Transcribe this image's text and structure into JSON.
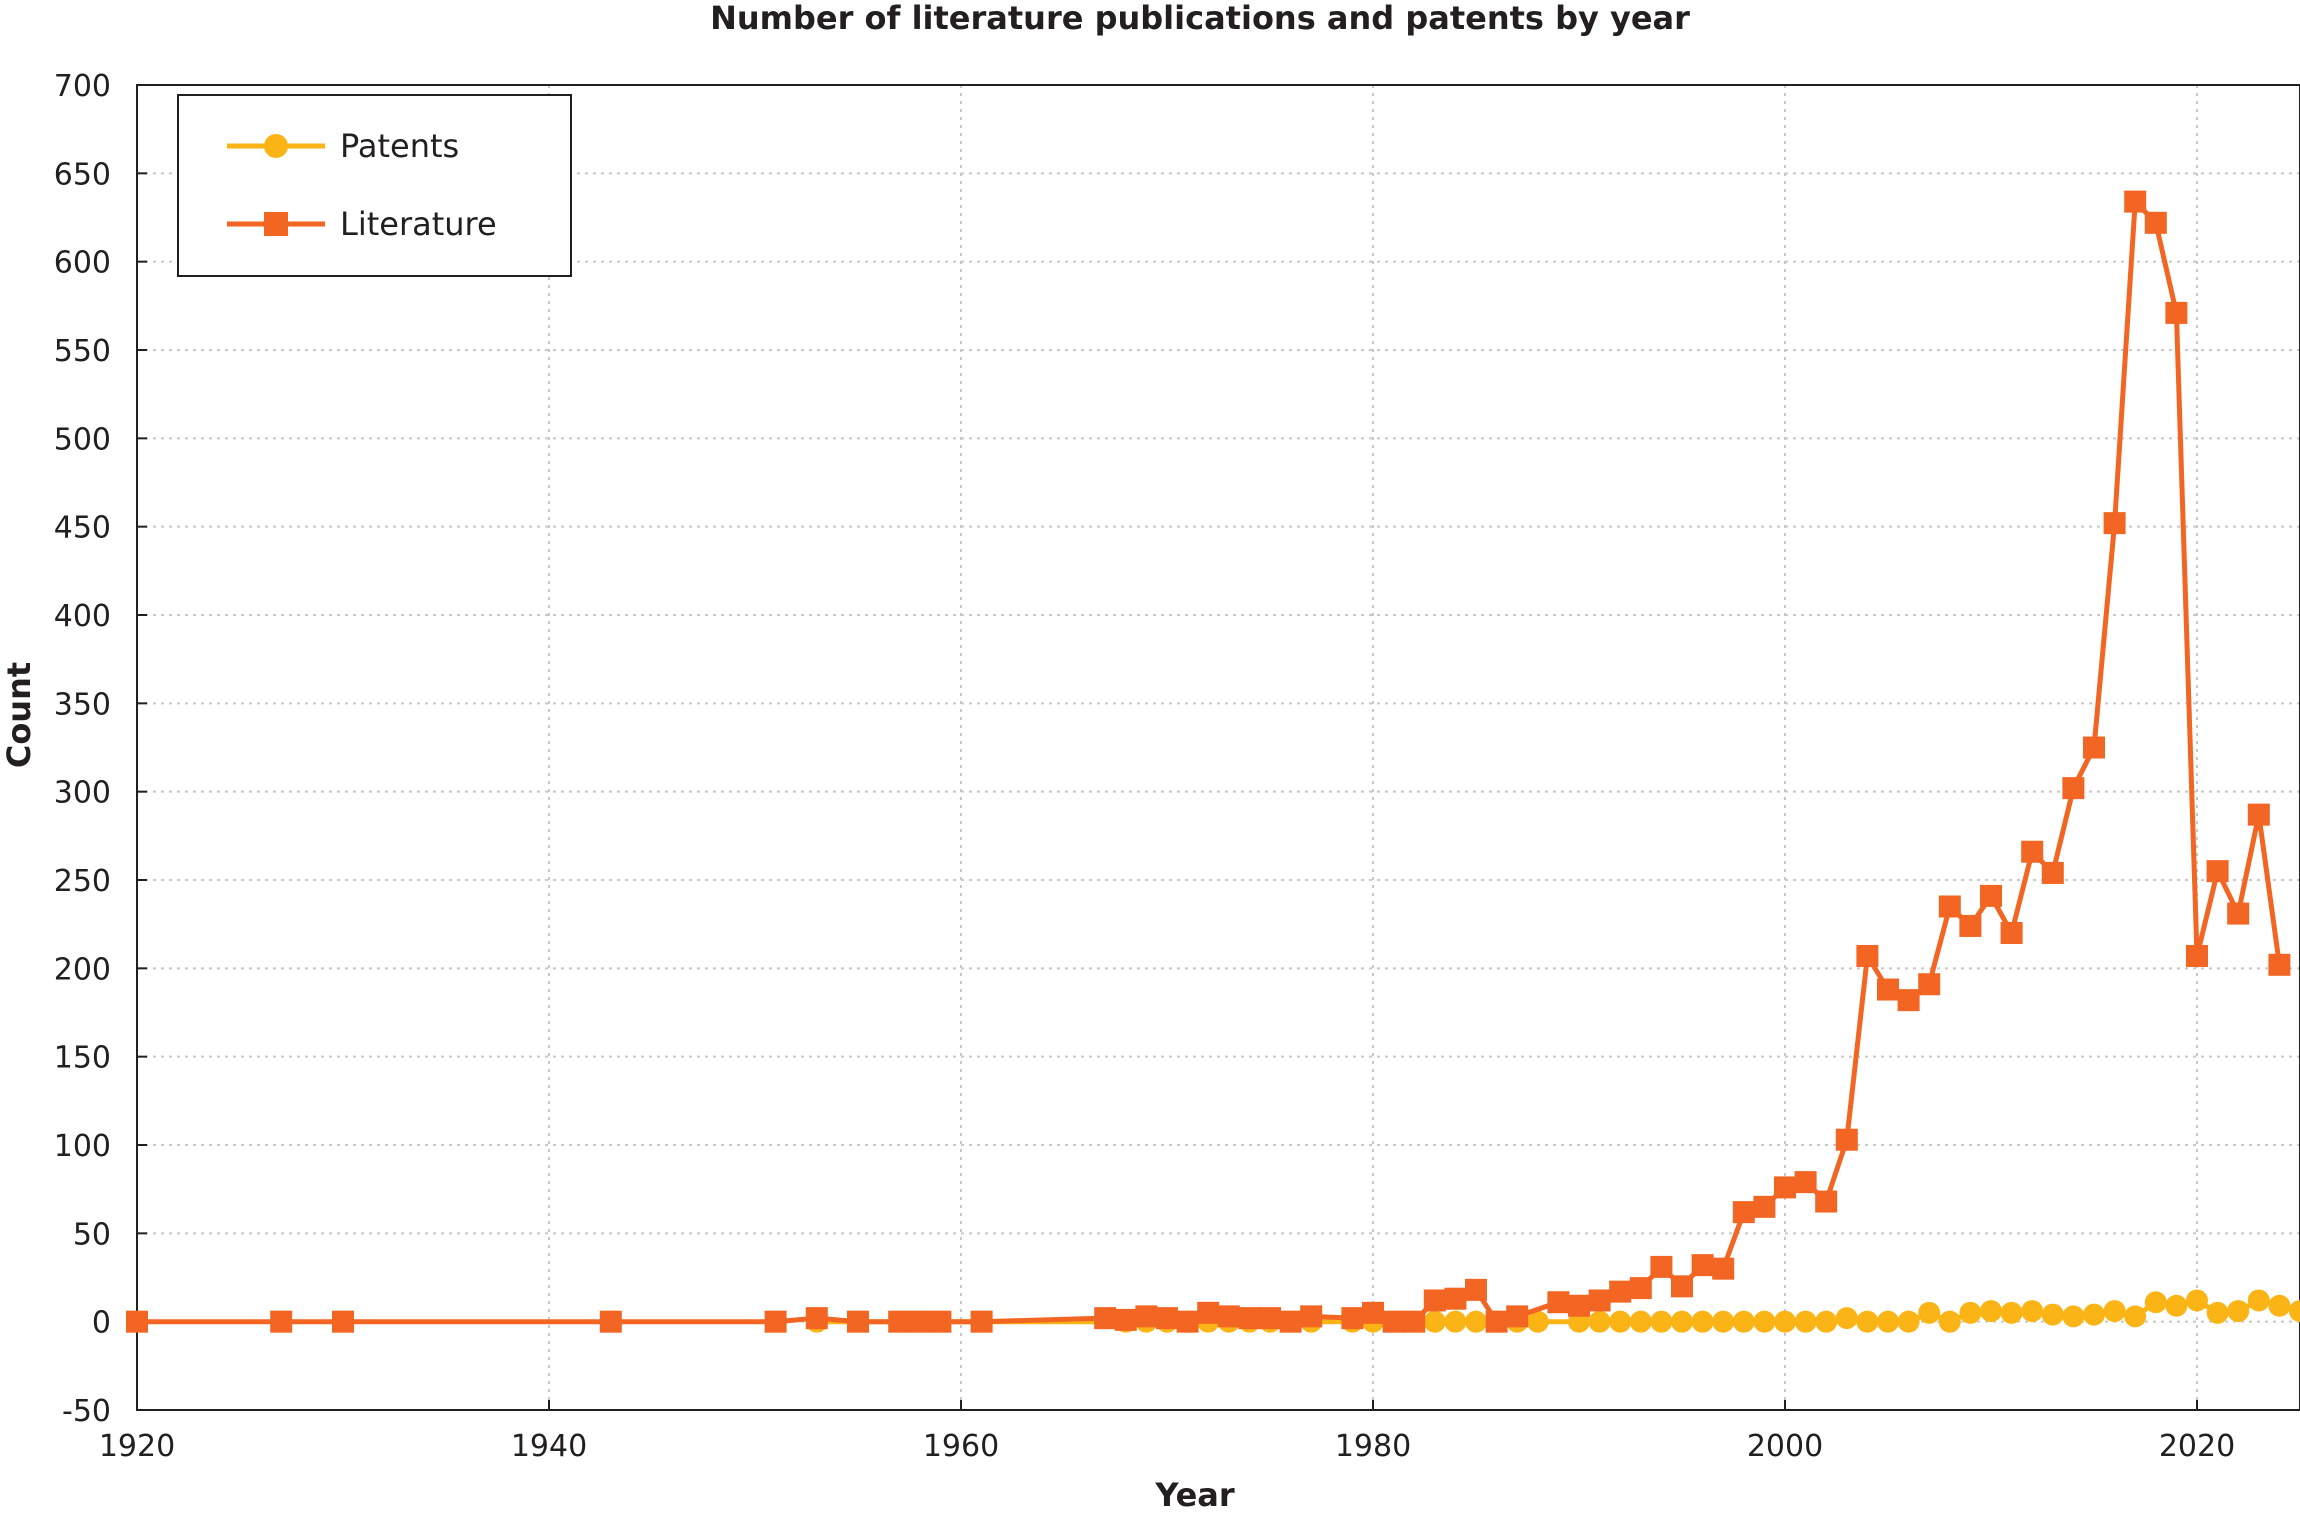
{
  "chart_data": {
    "type": "line",
    "title": "Number of literature publications and patents by year",
    "xlabel": "Year",
    "ylabel": "Count",
    "xlim": [
      1920,
      2025
    ],
    "ylim": [
      -50,
      700
    ],
    "x_ticks": [
      "1920",
      "1940",
      "1960",
      "1980",
      "2000",
      "2020"
    ],
    "y_ticks": [
      "700",
      "650",
      "600",
      "550",
      "500",
      "450",
      "400",
      "350",
      "300",
      "250",
      "200",
      "150",
      "100",
      "50",
      "0",
      "-50"
    ],
    "grid": true,
    "legend_position": "top-left",
    "series": [
      {
        "name": "Patents",
        "color": "#fbb416",
        "marker": "circle",
        "points": [
          [
            1953,
            0
          ],
          [
            1968,
            0
          ],
          [
            1969,
            0
          ],
          [
            1970,
            0
          ],
          [
            1971,
            0
          ],
          [
            1972,
            0
          ],
          [
            1973,
            0
          ],
          [
            1974,
            0
          ],
          [
            1975,
            0
          ],
          [
            1976,
            0
          ],
          [
            1977,
            0
          ],
          [
            1979,
            0
          ],
          [
            1980,
            0
          ],
          [
            1981,
            0
          ],
          [
            1982,
            0
          ],
          [
            1983,
            0
          ],
          [
            1984,
            0
          ],
          [
            1985,
            0
          ],
          [
            1986,
            0
          ],
          [
            1987,
            0
          ],
          [
            1988,
            0
          ],
          [
            1990,
            0
          ],
          [
            1991,
            0
          ],
          [
            1992,
            0
          ],
          [
            1993,
            0
          ],
          [
            1994,
            0
          ],
          [
            1995,
            0
          ],
          [
            1996,
            0
          ],
          [
            1997,
            0
          ],
          [
            1998,
            0
          ],
          [
            1999,
            0
          ],
          [
            2000,
            0
          ],
          [
            2001,
            0
          ],
          [
            2002,
            0
          ],
          [
            2003,
            2
          ],
          [
            2004,
            0
          ],
          [
            2005,
            0
          ],
          [
            2006,
            0
          ],
          [
            2007,
            5
          ],
          [
            2008,
            0
          ],
          [
            2009,
            5
          ],
          [
            2010,
            6
          ],
          [
            2011,
            5
          ],
          [
            2012,
            6
          ],
          [
            2013,
            4
          ],
          [
            2014,
            3
          ],
          [
            2015,
            4
          ],
          [
            2016,
            6
          ],
          [
            2017,
            3
          ],
          [
            2018,
            11
          ],
          [
            2019,
            9
          ],
          [
            2020,
            12
          ],
          [
            2021,
            5
          ],
          [
            2022,
            6
          ],
          [
            2023,
            12
          ],
          [
            2024,
            9
          ],
          [
            2025,
            6
          ]
        ]
      },
      {
        "name": "Literature",
        "color": "#f26522",
        "marker": "square",
        "points": [
          [
            1920,
            0
          ],
          [
            1927,
            0
          ],
          [
            1930,
            0
          ],
          [
            1943,
            0
          ],
          [
            1951,
            0
          ],
          [
            1953,
            2
          ],
          [
            1955,
            0
          ],
          [
            1957,
            0
          ],
          [
            1958,
            0
          ],
          [
            1959,
            0
          ],
          [
            1961,
            0
          ],
          [
            1967,
            2
          ],
          [
            1968,
            1
          ],
          [
            1969,
            3
          ],
          [
            1970,
            2
          ],
          [
            1971,
            0
          ],
          [
            1972,
            5
          ],
          [
            1973,
            3
          ],
          [
            1974,
            2
          ],
          [
            1975,
            2
          ],
          [
            1976,
            0
          ],
          [
            1977,
            3
          ],
          [
            1979,
            2
          ],
          [
            1980,
            5
          ],
          [
            1981,
            0
          ],
          [
            1982,
            0
          ],
          [
            1983,
            12
          ],
          [
            1984,
            13
          ],
          [
            1985,
            18
          ],
          [
            1986,
            0
          ],
          [
            1987,
            3
          ],
          [
            1989,
            11
          ],
          [
            1990,
            9
          ],
          [
            1991,
            12
          ],
          [
            1992,
            17
          ],
          [
            1993,
            19
          ],
          [
            1994,
            31
          ],
          [
            1995,
            20
          ],
          [
            1996,
            32
          ],
          [
            1997,
            30
          ],
          [
            1998,
            62
          ],
          [
            1999,
            65
          ],
          [
            2000,
            76
          ],
          [
            2001,
            79
          ],
          [
            2002,
            68
          ],
          [
            2003,
            103
          ],
          [
            2004,
            207
          ],
          [
            2005,
            188
          ],
          [
            2006,
            182
          ],
          [
            2007,
            191
          ],
          [
            2008,
            235
          ],
          [
            2009,
            224
          ],
          [
            2010,
            241
          ],
          [
            2011,
            220
          ],
          [
            2012,
            266
          ],
          [
            2013,
            254
          ],
          [
            2014,
            302
          ],
          [
            2015,
            325
          ],
          [
            2016,
            452
          ],
          [
            2017,
            634
          ],
          [
            2018,
            622
          ],
          [
            2019,
            571
          ],
          [
            2020,
            207
          ],
          [
            2021,
            255
          ],
          [
            2022,
            231
          ],
          [
            2023,
            287
          ],
          [
            2024,
            202
          ]
        ]
      }
    ]
  }
}
